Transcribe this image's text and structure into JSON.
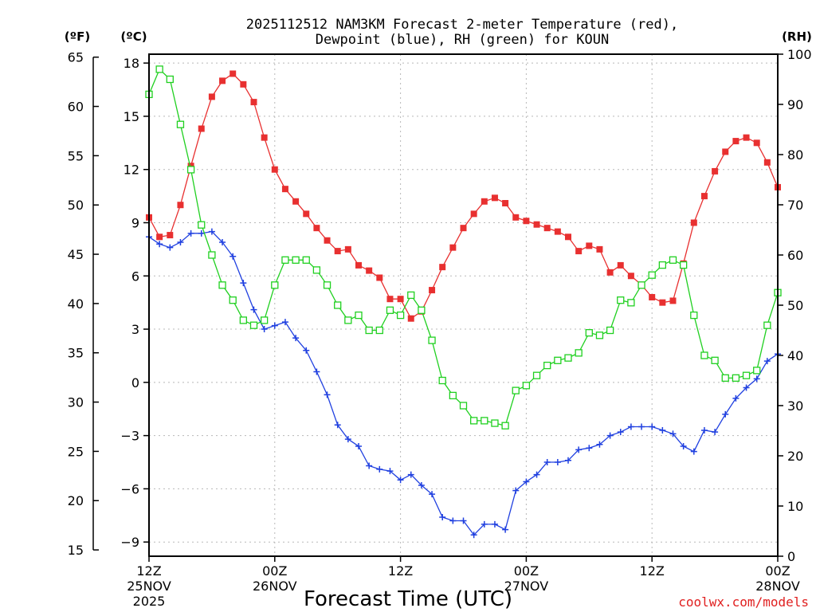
{
  "chart_data": {
    "type": "line",
    "title_line1": "2025112512 NAM3KM Forecast 2-meter Temperature (red),",
    "title_line2": "Dewpoint (blue), RH (green) for KOUN",
    "xlabel": "Forecast Time (UTC)",
    "credit": "coolwx.com/models",
    "units": {
      "f": "(ºF)",
      "c": "(ºC)",
      "rh": "(RH)"
    },
    "left_c_axis": {
      "ylim": [
        -9.8,
        18.5
      ],
      "ticks": [
        "18",
        "15",
        "12",
        "9",
        "6",
        "3",
        "0",
        "−3",
        "−6",
        "−9"
      ]
    },
    "left_f_axis": {
      "ticks": [
        "65",
        "60",
        "55",
        "50",
        "45",
        "40",
        "35",
        "30",
        "25",
        "20",
        "15"
      ]
    },
    "right_rh_axis": {
      "ylim": [
        0,
        100
      ],
      "ticks": [
        "100",
        "90",
        "80",
        "70",
        "60",
        "50",
        "40",
        "30",
        "20",
        "10",
        "0"
      ]
    },
    "x_hours_range": [
      0,
      60
    ],
    "x_ticks": [
      {
        "hour": 0,
        "l1": "12Z",
        "l2": "25NOV",
        "l3": "2025"
      },
      {
        "hour": 12,
        "l1": "00Z",
        "l2": "26NOV",
        "l3": ""
      },
      {
        "hour": 24,
        "l1": "12Z",
        "l2": "",
        "l3": ""
      },
      {
        "hour": 36,
        "l1": "00Z",
        "l2": "27NOV",
        "l3": ""
      },
      {
        "hour": 48,
        "l1": "12Z",
        "l2": "",
        "l3": ""
      },
      {
        "hour": 60,
        "l1": "00Z",
        "l2": "28NOV",
        "l3": ""
      }
    ],
    "colors": {
      "temperature": "#e83030",
      "dewpoint": "#2040e0",
      "rh": "#20d020"
    },
    "series": [
      {
        "name": "Temperature (°C)",
        "axis": "c",
        "marker": "square-filled",
        "values": [
          9.3,
          8.2,
          8.3,
          10.0,
          12.2,
          14.3,
          16.1,
          17.0,
          17.4,
          16.8,
          15.8,
          13.8,
          12.0,
          10.9,
          10.2,
          9.5,
          8.7,
          8.0,
          7.4,
          7.5,
          6.6,
          6.3,
          5.9,
          4.7,
          4.7,
          3.6,
          4.0,
          5.2,
          6.5,
          7.6,
          8.7,
          9.5,
          10.2,
          10.4,
          10.1,
          9.3,
          9.1,
          8.9,
          8.7,
          8.5,
          8.2,
          7.4,
          7.7,
          7.5,
          6.2,
          6.6,
          6.0,
          5.5,
          4.8,
          4.5,
          4.6,
          6.7,
          9.0,
          10.5,
          11.9,
          13.0,
          13.6,
          13.8,
          13.5,
          12.4,
          11.0
        ]
      },
      {
        "name": "Dewpoint (°C)",
        "axis": "c",
        "marker": "plus",
        "values": [
          8.2,
          7.8,
          7.6,
          7.9,
          8.4,
          8.4,
          8.5,
          7.9,
          7.1,
          5.6,
          4.1,
          3.0,
          3.2,
          3.4,
          2.5,
          1.8,
          0.6,
          -0.7,
          -2.4,
          -3.2,
          -3.6,
          -4.7,
          -4.9,
          -5.0,
          -5.5,
          -5.2,
          -5.8,
          -6.3,
          -7.6,
          -7.8,
          -7.8,
          -8.6,
          -8.0,
          -8.0,
          -8.3,
          -6.1,
          -5.6,
          -5.2,
          -4.5,
          -4.5,
          -4.4,
          -3.8,
          -3.7,
          -3.5,
          -3.0,
          -2.8,
          -2.5,
          -2.5,
          -2.5,
          -2.7,
          -2.9,
          -3.6,
          -3.9,
          -2.7,
          -2.8,
          -1.8,
          -0.9,
          -0.3,
          0.2,
          1.2,
          1.6
        ]
      },
      {
        "name": "RH (%)",
        "axis": "rh",
        "marker": "square-open",
        "values": [
          92,
          97,
          95,
          86,
          77,
          66,
          60,
          54,
          51,
          47,
          46,
          47,
          54,
          59,
          59,
          59,
          57,
          54,
          50,
          47,
          48,
          45,
          45,
          49,
          48,
          52,
          49,
          43,
          35,
          32,
          30,
          27,
          27,
          26.5,
          26,
          33,
          34,
          36,
          38,
          39,
          39.5,
          40.5,
          44.5,
          44,
          45,
          51,
          50.5,
          54,
          56,
          58,
          59,
          58,
          48,
          40,
          39,
          35.5,
          35.5,
          36,
          37,
          46,
          52.5
        ]
      }
    ]
  }
}
